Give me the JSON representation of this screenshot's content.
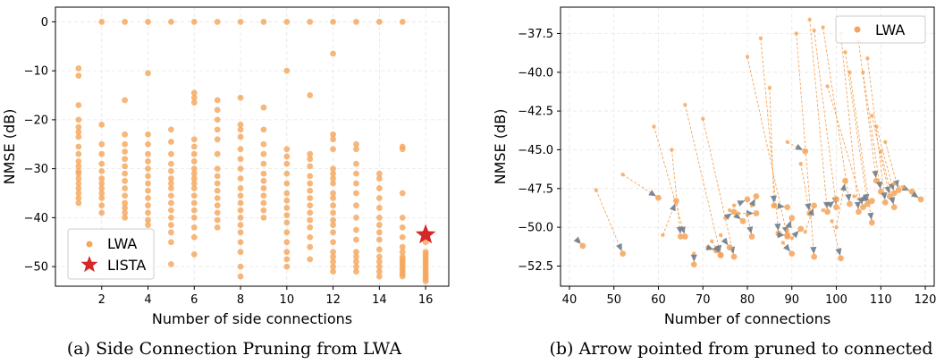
{
  "colors": {
    "lwa": "#f5a55a",
    "arrow": "#f5a55a",
    "arrowhead": "#6e7d8c",
    "lista": "#d62728",
    "grid": "#e6e6e6"
  },
  "captions": {
    "a": "(a)  Side Connection Pruning from LWA",
    "b": "(b)  Arrow pointed from pruned to connected"
  },
  "chart_data": [
    {
      "type": "scatter",
      "xlabel": "Number of side connections",
      "ylabel": "NMSE (dB)",
      "xlim": [
        0,
        17
      ],
      "ylim": [
        -54,
        3
      ],
      "xticks": [
        2,
        4,
        6,
        8,
        10,
        12,
        14,
        16
      ],
      "yticks": [
        0,
        -10,
        -20,
        -30,
        -40,
        -50
      ],
      "ytick_labels": [
        "0",
        "−10",
        "−20",
        "−30",
        "−40",
        "−50"
      ],
      "grid": true,
      "legend": {
        "position": "bottom-left",
        "entries": [
          "LWA",
          "LISTA"
        ]
      },
      "series": [
        {
          "name": "LWA",
          "marker": "circle",
          "points": {
            "1": [
              -9.5,
              -11,
              -17,
              -20,
              -21.5,
              -22.5,
              -23.5,
              -25.5,
              -27,
              -28.5,
              -29.5,
              -30.5,
              -31,
              -32,
              -33,
              -34,
              -35,
              -36,
              -37
            ],
            "2": [
              0,
              -21,
              -25,
              -27,
              -29,
              -30.5,
              -32,
              -33,
              -34,
              -35,
              -36,
              -37.5,
              -39
            ],
            "3": [
              0,
              -16,
              -23,
              -25,
              -26.5,
              -28,
              -29.5,
              -31,
              -32.5,
              -34,
              -35.5,
              -37,
              -38,
              -39,
              -40
            ],
            "4": [
              0,
              -10.5,
              -23,
              -25,
              -27,
              -28.5,
              -30,
              -31.5,
              -33,
              -34.5,
              -36,
              -37.5,
              -39,
              -40.5,
              -41.5
            ],
            "5": [
              0,
              -22,
              -24.5,
              -27,
              -29,
              -30.5,
              -32,
              -33,
              -34,
              -35.5,
              -37,
              -38.5,
              -40,
              -41.5,
              -43,
              -45,
              -49.5
            ],
            "6": [
              0,
              -14.5,
              -15.5,
              -16.5,
              -24,
              -25.5,
              -27,
              -28.5,
              -30,
              -31,
              -32,
              -33,
              -34,
              -35.5,
              -37,
              -38.5,
              -40,
              -42,
              -44,
              -47.5
            ],
            "7": [
              0,
              -16,
              -18,
              -20,
              -22,
              -24,
              -27,
              -30,
              -31.5,
              -33,
              -34.5,
              -36,
              -37.5,
              -39,
              -40.5,
              -42
            ],
            "8": [
              0,
              -15.5,
              -21,
              -22,
              -23.5,
              -26,
              -28,
              -30,
              -32,
              -34,
              -35.5,
              -37,
              -38.5,
              -40,
              -41.5,
              -43,
              -45,
              -47,
              -50,
              -52
            ],
            "9": [
              0,
              -17.5,
              -22,
              -25,
              -27,
              -29,
              -31,
              -32.5,
              -34,
              -35.5,
              -37,
              -38.5,
              -40
            ],
            "10": [
              0,
              -10,
              -26,
              -27.5,
              -29,
              -31,
              -33,
              -35,
              -36.5,
              -38,
              -39.5,
              -41,
              -43,
              -45,
              -47,
              -48.5,
              -50
            ],
            "11": [
              0,
              -15,
              -27,
              -28,
              -29.5,
              -31.5,
              -33,
              -34.5,
              -36,
              -37.5,
              -39,
              -40.5,
              -42,
              -44,
              -46,
              -48.5
            ],
            "12": [
              0,
              -6.5,
              -23,
              -24,
              -26,
              -30,
              -31,
              -32,
              -33,
              -35,
              -36,
              -37.5,
              -39,
              -40.5,
              -41.5,
              -43,
              -45,
              -47,
              -48,
              -49,
              -50,
              -51
            ],
            "13": [
              0,
              -25,
              -26,
              -29,
              -31,
              -33,
              -35,
              -37.5,
              -40,
              -42.5,
              -44.5,
              -47,
              -48,
              -49,
              -50,
              -51
            ],
            "14": [
              0,
              -31,
              -32,
              -34,
              -36,
              -38,
              -40,
              -41.5,
              -43,
              -44.5,
              -46.5,
              -48,
              -49,
              -50,
              -51,
              -52
            ],
            "15": [
              0,
              -25.5,
              -26,
              -35,
              -40,
              -42,
              -44,
              -46,
              -47,
              -48,
              -48.5,
              -49,
              -49.5,
              -50,
              -50.5,
              -51,
              -51.5,
              -52
            ],
            "16": [
              -43,
              -45,
              -47,
              -47.5,
              -48,
              -48.5,
              -49,
              -49.5,
              -50,
              -50.5,
              -51,
              -51.5,
              -52,
              -52.5,
              -53
            ]
          }
        },
        {
          "name": "LISTA",
          "marker": "star",
          "points": {
            "16": [
              -43.5
            ]
          }
        }
      ]
    },
    {
      "type": "scatter",
      "xlabel": "Number of connections",
      "ylabel": "NMSE (dB)",
      "xlim": [
        38,
        122
      ],
      "ylim": [
        -53.8,
        -35.8
      ],
      "xticks": [
        40,
        50,
        60,
        70,
        80,
        90,
        100,
        110,
        120
      ],
      "yticks": [
        -37.5,
        -40.0,
        -42.5,
        -45.0,
        -47.5,
        -50.0,
        -52.5
      ],
      "ytick_labels": [
        "−37.5",
        "−40.0",
        "−42.5",
        "−45.0",
        "−47.5",
        "−50.0",
        "−52.5"
      ],
      "grid": true,
      "legend": {
        "position": "top-right",
        "entries": [
          "LWA"
        ]
      },
      "series": [
        {
          "name": "LWA",
          "marker": "circle-with-arrow",
          "arrows": [
            [
              42,
              -50.9,
              43,
              -51.2
            ],
            [
              46,
              -47.6,
              52,
              -51.7
            ],
            [
              52,
              -46.6,
              60,
              -48.1
            ],
            [
              59,
              -43.5,
              66,
              -50.6
            ],
            [
              61,
              -50.5,
              64,
              -48.3
            ],
            [
              63,
              -45.0,
              65,
              -50.6
            ],
            [
              66,
              -42.1,
              74,
              -51.8
            ],
            [
              68,
              -51.7,
              68,
              -52.4
            ],
            [
              70,
              -43.0,
              77,
              -51.9
            ],
            [
              71,
              -51.3,
              73,
              -51.5
            ],
            [
              72,
              -50.9,
              74,
              -51.8
            ],
            [
              74,
              -50.5,
              76,
              -51.3
            ],
            [
              75,
              -49.4,
              77,
              -49.0
            ],
            [
              76,
              -48.9,
              79,
              -49.6
            ],
            [
              77,
              -48.6,
              80,
              -48.2
            ],
            [
              78,
              -49.1,
              82,
              -49.1
            ],
            [
              80,
              -49.2,
              81,
              -50.6
            ],
            [
              81,
              -48.6,
              82,
              -48.0
            ],
            [
              83,
              -37.8,
              87,
              -50.4
            ],
            [
              80,
              -39.0,
              89,
              -50.6
            ],
            [
              85,
              -41.0,
              86,
              -48.6
            ],
            [
              86,
              -48.6,
              89,
              -48.7
            ],
            [
              87,
              -50.5,
              89,
              -50.5
            ],
            [
              88,
              -51.0,
              90,
              -51.7
            ],
            [
              89,
              -50.2,
              90,
              -49.4
            ],
            [
              89,
              -44.5,
              93,
              -45.1
            ],
            [
              90,
              -50.7,
              92,
              -50.1
            ],
            [
              91,
              -37.5,
              95,
              -51.9
            ],
            [
              92,
              -45.9,
              94,
              -49.1
            ],
            [
              93,
              -50.3,
              95,
              -48.6
            ],
            [
              94,
              -36.6,
              98,
              -49.0
            ],
            [
              95,
              -37.3,
              100,
              -48.7
            ],
            [
              97,
              -48.9,
              100,
              -48.2
            ],
            [
              97,
              -37.1,
              103,
              -48.5
            ],
            [
              98,
              -40.9,
              106,
              -48.7
            ],
            [
              99,
              -49.6,
              101,
              -52.0
            ],
            [
              100,
              -50.0,
              102,
              -47.0
            ],
            [
              101,
              -37.5,
              105,
              -49.0
            ],
            [
              102,
              -38.7,
              107,
              -48.5
            ],
            [
              103,
              -40.0,
              108,
              -49.7
            ],
            [
              104,
              -48.0,
              108,
              -48.3
            ],
            [
              105,
              -38.0,
              109,
              -47.0
            ],
            [
              106,
              -40.0,
              110,
              -47.7
            ],
            [
              107,
              -39.1,
              111,
              -48.4
            ],
            [
              108,
              -42.8,
              112,
              -48.0
            ],
            [
              109,
              -43.5,
              113,
              -47.8
            ],
            [
              110,
              -45.1,
              113,
              -48.7
            ],
            [
              111,
              -44.5,
              114,
              -47.6
            ],
            [
              113,
              -47.2,
              117,
              -47.7
            ],
            [
              115,
              -47.4,
              119,
              -48.2
            ]
          ]
        }
      ]
    }
  ]
}
